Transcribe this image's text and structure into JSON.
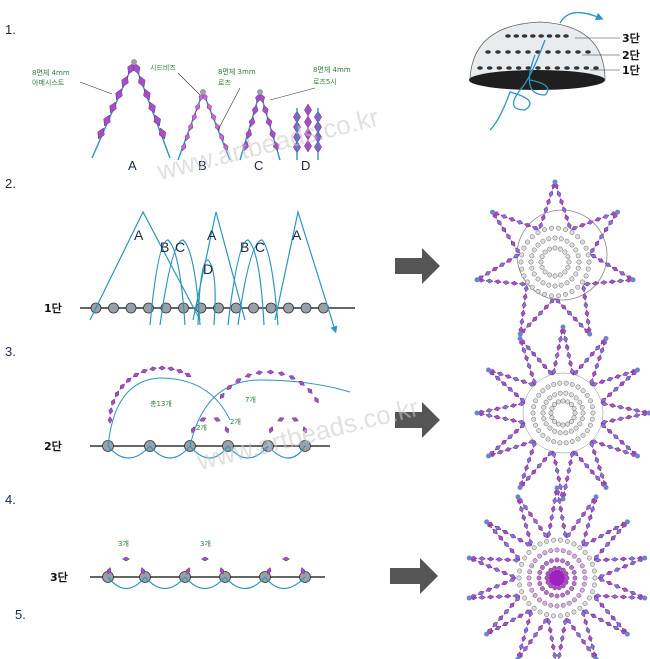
{
  "steps": [
    "1.",
    "2.",
    "3.",
    "4.",
    "5."
  ],
  "watermark": "www.artbeads.co.kr",
  "colors": {
    "thread": "#2b96c0",
    "bead_purple": "#a64fc4",
    "bead_light": "#d9a6e8",
    "bead_steel": "#9aa0a8",
    "arrow": "#555555"
  },
  "step1": {
    "letters": [
      "A",
      "B",
      "C",
      "D"
    ],
    "notes": {
      "a": [
        "8면체 4mm",
        "아메시스트"
      ],
      "b": "시드비즈",
      "c": [
        "8면체 3mm",
        "로즈"
      ],
      "d": [
        "8면체 4mm",
        "로즈5시"
      ]
    },
    "dome_rows": [
      "3단",
      "2단",
      "1단"
    ]
  },
  "step2": {
    "letters": [
      "A",
      "B",
      "C",
      "A",
      "D",
      "B",
      "C",
      "A"
    ],
    "row": "1단"
  },
  "step3": {
    "counts": [
      "총13개",
      "7개",
      "2개",
      "2개"
    ],
    "row": "2단"
  },
  "step4": {
    "counts": [
      "3개",
      "3개"
    ],
    "row": "3단"
  }
}
